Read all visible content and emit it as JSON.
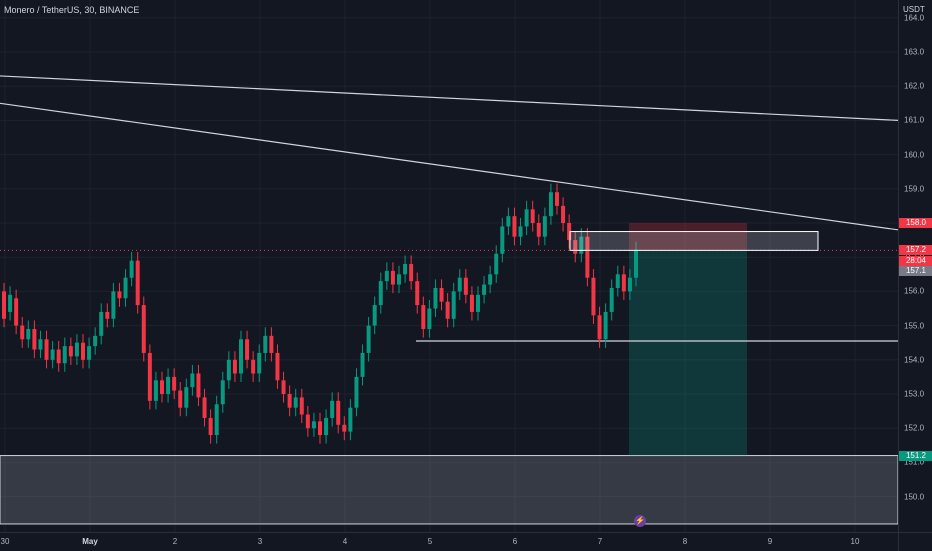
{
  "header": {
    "symbol_title": "Monero / TetherUS, 30, BINANCE"
  },
  "price_axis": {
    "currency": "USDT",
    "ticks": [
      "164.0",
      "163.0",
      "162.0",
      "161.0",
      "160.0",
      "159.0",
      "158.0",
      "157.0",
      "156.0",
      "155.0",
      "154.0",
      "153.0",
      "152.0",
      "151.0",
      "150.0"
    ],
    "tick_values": [
      164,
      163,
      162,
      161,
      160,
      159,
      158,
      157,
      156,
      155,
      154,
      153,
      152,
      151,
      150
    ],
    "badges": [
      {
        "label": "158.0",
        "value": 158.0,
        "color": "#f23645"
      },
      {
        "label": "157.2",
        "value": 157.2,
        "color": "#f23645"
      },
      {
        "label": "28:04",
        "value": 156.88,
        "color": "#f23645"
      },
      {
        "label": "157.1",
        "value": 156.6,
        "color": "#787b86"
      },
      {
        "label": "151.2",
        "value": 151.2,
        "color": "#089981"
      }
    ]
  },
  "time_axis": {
    "ticks": [
      {
        "label": "30",
        "bold": false
      },
      {
        "label": "May",
        "bold": true
      },
      {
        "label": "2",
        "bold": false
      },
      {
        "label": "3",
        "bold": false
      },
      {
        "label": "4",
        "bold": false
      },
      {
        "label": "5",
        "bold": false
      },
      {
        "label": "6",
        "bold": false
      },
      {
        "label": "7",
        "bold": false
      },
      {
        "label": "8",
        "bold": false
      },
      {
        "label": "9",
        "bold": false
      },
      {
        "label": "10",
        "bold": false
      }
    ]
  },
  "drawings": {
    "trendline_upper": {
      "start_price": 162.3,
      "end_price": 161.0
    },
    "trendline_lower": {
      "start_price": 161.5,
      "end_price": 157.8
    },
    "support_line_price": 154.55,
    "demand_zone": {
      "top": 151.2,
      "bottom": 149.2
    },
    "supply_zone": {
      "top": 157.75,
      "bottom": 157.2
    },
    "short_position": {
      "entry": 157.2,
      "stop": 158.0,
      "target": 151.2
    }
  },
  "colors": {
    "background": "#131722",
    "up": "#089981",
    "down": "#f23645",
    "line": "#d1d4dc"
  },
  "candles": [
    [
      156.0,
      155.2
    ],
    [
      155.4,
      155.9
    ],
    [
      155.8,
      155.0
    ],
    [
      155.0,
      154.6
    ],
    [
      154.6,
      154.9
    ],
    [
      154.9,
      154.3
    ],
    [
      154.3,
      154.6
    ],
    [
      154.6,
      154.0
    ],
    [
      154.0,
      154.3
    ],
    [
      154.3,
      153.9
    ],
    [
      153.9,
      154.4
    ],
    [
      154.4,
      154.1
    ],
    [
      154.1,
      154.5
    ],
    [
      154.5,
      154.0
    ],
    [
      154.0,
      154.4
    ],
    [
      154.4,
      154.7
    ],
    [
      154.7,
      155.4
    ],
    [
      155.4,
      155.2
    ],
    [
      155.2,
      156.0
    ],
    [
      156.0,
      155.8
    ],
    [
      155.8,
      156.4
    ],
    [
      156.4,
      156.9
    ],
    [
      156.9,
      155.6
    ],
    [
      155.6,
      154.2
    ],
    [
      154.2,
      152.8
    ],
    [
      152.8,
      153.4
    ],
    [
      153.4,
      153.0
    ],
    [
      153.0,
      153.5
    ],
    [
      153.5,
      153.1
    ],
    [
      153.1,
      152.6
    ],
    [
      152.6,
      153.2
    ],
    [
      153.2,
      153.6
    ],
    [
      153.6,
      152.9
    ],
    [
      152.9,
      152.3
    ],
    [
      152.3,
      151.8
    ],
    [
      151.8,
      152.7
    ],
    [
      152.7,
      153.4
    ],
    [
      153.4,
      154.0
    ],
    [
      154.0,
      153.6
    ],
    [
      153.6,
      154.6
    ],
    [
      154.6,
      154.0
    ],
    [
      154.0,
      153.6
    ],
    [
      153.6,
      154.2
    ],
    [
      154.2,
      154.7
    ],
    [
      154.7,
      154.2
    ],
    [
      154.2,
      153.4
    ],
    [
      153.4,
      153.0
    ],
    [
      153.0,
      152.6
    ],
    [
      152.6,
      152.9
    ],
    [
      152.9,
      152.4
    ],
    [
      152.4,
      152.0
    ],
    [
      152.0,
      152.2
    ],
    [
      152.2,
      151.8
    ],
    [
      151.8,
      152.3
    ],
    [
      152.3,
      152.8
    ],
    [
      152.8,
      152.1
    ],
    [
      152.1,
      151.9
    ],
    [
      151.9,
      152.6
    ],
    [
      152.6,
      153.5
    ],
    [
      153.5,
      154.2
    ],
    [
      154.2,
      155.0
    ],
    [
      155.0,
      155.6
    ],
    [
      155.6,
      156.3
    ],
    [
      156.3,
      156.6
    ],
    [
      156.6,
      156.2
    ],
    [
      156.2,
      156.5
    ],
    [
      156.5,
      156.8
    ],
    [
      156.8,
      156.3
    ],
    [
      156.3,
      155.6
    ],
    [
      155.6,
      154.9
    ],
    [
      154.9,
      155.5
    ],
    [
      155.5,
      156.1
    ],
    [
      156.1,
      155.7
    ],
    [
      155.7,
      155.2
    ],
    [
      155.2,
      156.0
    ],
    [
      156.0,
      156.4
    ],
    [
      156.4,
      155.9
    ],
    [
      155.9,
      155.4
    ],
    [
      155.4,
      155.9
    ],
    [
      155.9,
      156.2
    ],
    [
      156.2,
      156.5
    ],
    [
      156.5,
      157.1
    ],
    [
      157.1,
      157.9
    ],
    [
      157.9,
      158.2
    ],
    [
      158.2,
      157.6
    ],
    [
      157.6,
      157.9
    ],
    [
      157.9,
      158.4
    ],
    [
      158.4,
      158.0
    ],
    [
      158.0,
      157.6
    ],
    [
      157.6,
      158.2
    ],
    [
      158.2,
      158.9
    ],
    [
      158.9,
      158.5
    ],
    [
      158.5,
      158.0
    ],
    [
      158.0,
      157.5
    ],
    [
      157.5,
      157.1
    ],
    [
      157.1,
      157.6
    ],
    [
      157.6,
      156.4
    ],
    [
      156.4,
      155.3
    ],
    [
      155.3,
      154.6
    ],
    [
      154.6,
      155.4
    ],
    [
      155.4,
      156.1
    ],
    [
      156.1,
      156.5
    ],
    [
      156.5,
      156.0
    ],
    [
      156.0,
      156.4
    ],
    [
      156.4,
      157.2
    ]
  ]
}
